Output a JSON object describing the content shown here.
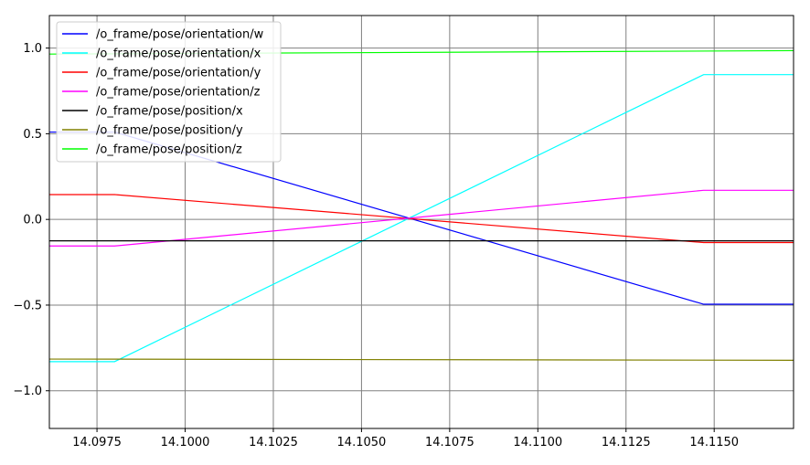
{
  "chart_data": {
    "type": "line",
    "title": "",
    "xlabel": "",
    "ylabel": "",
    "xlim": [
      14.09615,
      14.11725
    ],
    "ylim": [
      -1.22,
      1.19
    ],
    "grid": true,
    "legend_position": "top-left",
    "x_ticks": [
      14.0975,
      14.1,
      14.1025,
      14.105,
      14.1075,
      14.11,
      14.1125,
      14.115
    ],
    "x_tick_labels": [
      "14.0975",
      "14.1000",
      "14.1025",
      "14.1050",
      "14.1075",
      "14.1100",
      "14.1125",
      "14.1150"
    ],
    "y_ticks": [
      -1.0,
      -0.5,
      0.0,
      0.5,
      1.0
    ],
    "y_tick_labels": [
      "−1.0",
      "−0.5",
      "0.0",
      "0.5",
      "1.0"
    ],
    "series": [
      {
        "name": "/o_frame/pose/orientation/w",
        "color": "#0000ff",
        "points": [
          [
            14.09615,
            0.51
          ],
          [
            14.098,
            0.51
          ],
          [
            14.1147,
            -0.495
          ],
          [
            14.11725,
            -0.495
          ]
        ]
      },
      {
        "name": "/o_frame/pose/orientation/x",
        "color": "#00ffff",
        "points": [
          [
            14.09615,
            -0.83
          ],
          [
            14.098,
            -0.83
          ],
          [
            14.1147,
            0.845
          ],
          [
            14.11725,
            0.845
          ]
        ]
      },
      {
        "name": "/o_frame/pose/orientation/y",
        "color": "#ff0000",
        "points": [
          [
            14.09615,
            0.145
          ],
          [
            14.098,
            0.145
          ],
          [
            14.1147,
            -0.135
          ],
          [
            14.11725,
            -0.135
          ]
        ]
      },
      {
        "name": "/o_frame/pose/orientation/z",
        "color": "#ff00ff",
        "points": [
          [
            14.09615,
            -0.155
          ],
          [
            14.098,
            -0.155
          ],
          [
            14.1147,
            0.17
          ],
          [
            14.11725,
            0.17
          ]
        ]
      },
      {
        "name": "/o_frame/pose/position/x",
        "color": "#000000",
        "points": [
          [
            14.09615,
            -0.125
          ],
          [
            14.11725,
            -0.125
          ]
        ]
      },
      {
        "name": "/o_frame/pose/position/y",
        "color": "#808000",
        "points": [
          [
            14.09615,
            -0.815
          ],
          [
            14.11725,
            -0.822
          ]
        ]
      },
      {
        "name": "/o_frame/pose/position/z",
        "color": "#00ff00",
        "points": [
          [
            14.09615,
            0.965
          ],
          [
            14.11725,
            0.985
          ]
        ]
      }
    ]
  }
}
